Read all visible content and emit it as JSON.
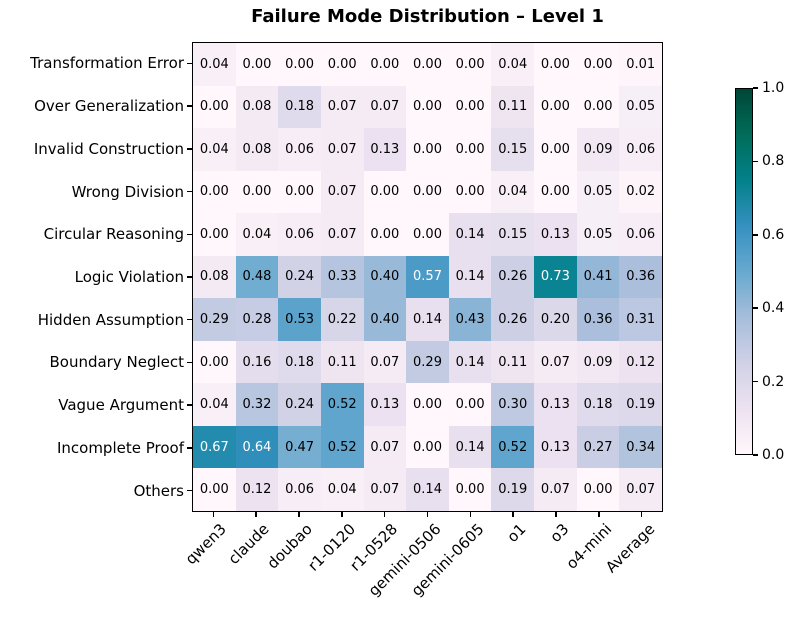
{
  "title": "Failure Mode Distribution – Level 1",
  "chart_data": {
    "type": "heatmap",
    "title": "Failure Mode Distribution – Level 1",
    "rows": [
      "Transformation Error",
      "Over Generalization",
      "Invalid Construction",
      "Wrong Division",
      "Circular Reasoning",
      "Logic Violation",
      "Hidden Assumption",
      "Boundary Neglect",
      "Vague Argument",
      "Incomplete Proof",
      "Others"
    ],
    "columns": [
      "qwen3",
      "claude",
      "doubao",
      "r1-0120",
      "r1-0528",
      "gemini-0506",
      "gemini-0605",
      "o1",
      "o3",
      "o4-mini",
      "Average"
    ],
    "values": [
      [
        0.04,
        0.0,
        0.0,
        0.0,
        0.0,
        0.0,
        0.0,
        0.04,
        0.0,
        0.0,
        0.01
      ],
      [
        0.0,
        0.08,
        0.18,
        0.07,
        0.07,
        0.0,
        0.0,
        0.11,
        0.0,
        0.0,
        0.05
      ],
      [
        0.04,
        0.08,
        0.06,
        0.07,
        0.13,
        0.0,
        0.0,
        0.15,
        0.0,
        0.09,
        0.06
      ],
      [
        0.0,
        0.0,
        0.0,
        0.07,
        0.0,
        0.0,
        0.0,
        0.04,
        0.0,
        0.05,
        0.02
      ],
      [
        0.0,
        0.04,
        0.06,
        0.07,
        0.0,
        0.0,
        0.14,
        0.15,
        0.13,
        0.05,
        0.06
      ],
      [
        0.08,
        0.48,
        0.24,
        0.33,
        0.4,
        0.57,
        0.14,
        0.26,
        0.73,
        0.41,
        0.36
      ],
      [
        0.29,
        0.28,
        0.53,
        0.22,
        0.4,
        0.14,
        0.43,
        0.26,
        0.2,
        0.36,
        0.31
      ],
      [
        0.0,
        0.16,
        0.18,
        0.11,
        0.07,
        0.29,
        0.14,
        0.11,
        0.07,
        0.09,
        0.12
      ],
      [
        0.04,
        0.32,
        0.24,
        0.52,
        0.13,
        0.0,
        0.0,
        0.3,
        0.13,
        0.18,
        0.19
      ],
      [
        0.67,
        0.64,
        0.47,
        0.52,
        0.07,
        0.0,
        0.14,
        0.52,
        0.13,
        0.27,
        0.34
      ],
      [
        0.0,
        0.12,
        0.06,
        0.04,
        0.07,
        0.14,
        0.0,
        0.19,
        0.07,
        0.0,
        0.07
      ]
    ],
    "vmin": 0.0,
    "vmax": 1.0,
    "colormap": "PuBuGn",
    "annotation_decimals": 2,
    "white_text_threshold": 0.55,
    "colorbar_ticks": [
      "1.0",
      "0.8",
      "0.6",
      "0.4",
      "0.2",
      "0.0"
    ],
    "legend_position": "right-colorbar",
    "grid": false
  },
  "colors": {
    "colormap_stops": [
      "#fff7fb",
      "#ece2f0",
      "#d0d1e6",
      "#a6bddb",
      "#67a9cf",
      "#3690c0",
      "#02818a",
      "#016c59",
      "#014636"
    ],
    "axis": "#000000",
    "annotation_dark": "#000000",
    "annotation_light": "#ffffff",
    "background": "#ffffff"
  }
}
